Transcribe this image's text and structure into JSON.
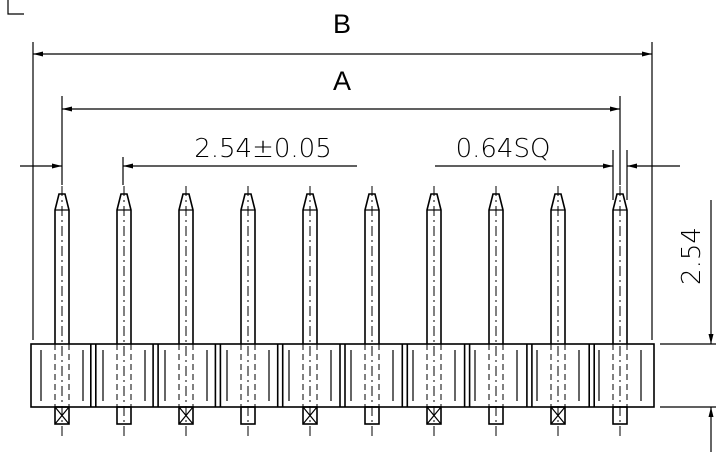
{
  "dimensions": {
    "overall_length": "B",
    "pin_span": "A",
    "pitch": "2.54±0.05",
    "pin_size": "0.64SQ",
    "pin_height": "2.54"
  },
  "pin_count": 10
}
